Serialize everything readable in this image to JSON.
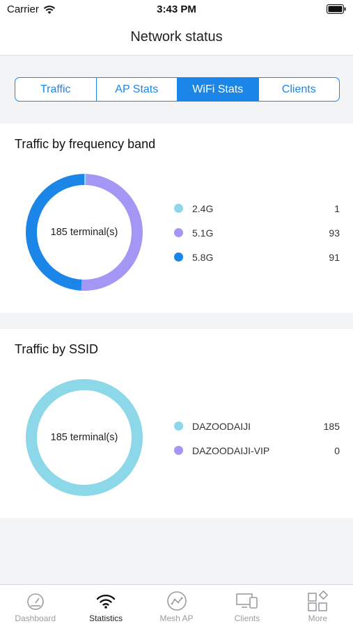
{
  "status_bar": {
    "carrier": "Carrier",
    "time": "3:43 PM"
  },
  "nav": {
    "title": "Network status"
  },
  "segments": [
    {
      "label": "Traffic",
      "active": false
    },
    {
      "label": "AP Stats",
      "active": false
    },
    {
      "label": "WiFi Stats",
      "active": true
    },
    {
      "label": "Clients",
      "active": false
    }
  ],
  "cards": [
    {
      "title": "Traffic by frequency band",
      "center_label": "185 terminal(s)",
      "items": [
        {
          "label": "2.4G",
          "value": "1",
          "color": "#8cd8e8"
        },
        {
          "label": "5.1G",
          "value": "93",
          "color": "#a496f5"
        },
        {
          "label": "5.8G",
          "value": "91",
          "color": "#1b85e8"
        }
      ]
    },
    {
      "title": "Traffic by SSID",
      "center_label": "185 terminal(s)",
      "items": [
        {
          "label": "DAZOODAIJI",
          "value": "185",
          "color": "#8cd8e8"
        },
        {
          "label": "DAZOODAIJI-VIP",
          "value": "0",
          "color": "#a496f5"
        }
      ]
    }
  ],
  "tabbar": [
    {
      "label": "Dashboard",
      "icon": "gauge-icon",
      "active": false
    },
    {
      "label": "Statistics",
      "icon": "wifi-icon",
      "active": true
    },
    {
      "label": "Mesh AP",
      "icon": "mesh-icon",
      "active": false
    },
    {
      "label": "Clients",
      "icon": "devices-icon",
      "active": false
    },
    {
      "label": "More",
      "icon": "grid-icon",
      "active": false
    }
  ]
}
